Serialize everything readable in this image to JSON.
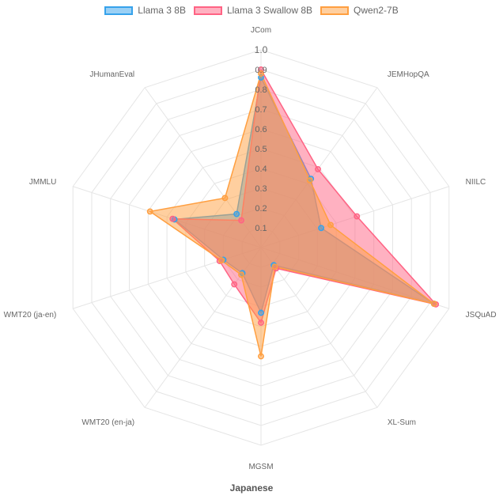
{
  "chart_data": {
    "type": "radar",
    "title": "Japanese",
    "axes": [
      "JCom",
      "JEMHopQA",
      "NIILC",
      "JSQuAD",
      "XL-Sum",
      "MGSM",
      "WMT20 (en-ja)",
      "WMT20 (ja-en)",
      "JMMLU",
      "JHumanEval"
    ],
    "rlim": [
      0,
      1.0
    ],
    "ticks": [
      "0.1",
      "0.2",
      "0.3",
      "0.4",
      "0.5",
      "0.6",
      "0.7",
      "0.8",
      "0.9",
      "1.0"
    ],
    "grid": true,
    "legend_position": "top",
    "series": [
      {
        "name": "Llama 3 8B",
        "color": "#36a2eb",
        "fill": "rgba(54,162,235,0.5)",
        "values": [
          0.86,
          0.43,
          0.32,
          0.92,
          0.11,
          0.33,
          0.16,
          0.2,
          0.46,
          0.21
        ]
      },
      {
        "name": "Llama 3 Swallow 8B",
        "color": "#ff6384",
        "fill": "rgba(255,99,132,0.5)",
        "values": [
          0.9,
          0.49,
          0.51,
          0.93,
          0.13,
          0.38,
          0.23,
          0.22,
          0.47,
          0.17
        ]
      },
      {
        "name": "Qwen2-7B",
        "color": "#ff9f40",
        "fill": "rgba(255,159,64,0.5)",
        "values": [
          0.88,
          0.42,
          0.37,
          0.92,
          0.12,
          0.55,
          0.17,
          0.21,
          0.59,
          0.31
        ]
      }
    ]
  }
}
